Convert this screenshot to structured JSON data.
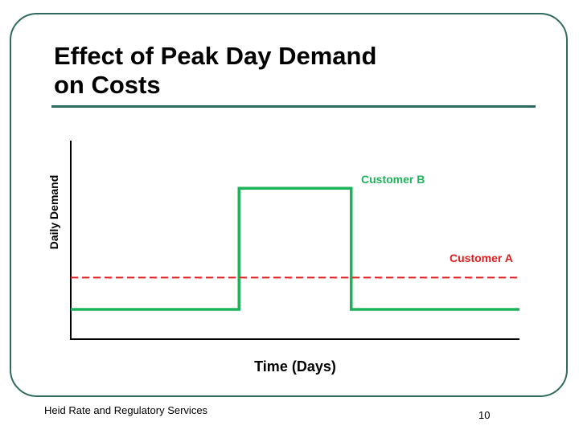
{
  "slide": {
    "title_line1": "Effect of Peak Day Demand",
    "title_line2": "on Costs",
    "footer": "Heid Rate and Regulatory Services",
    "page_number": "10"
  },
  "colors": {
    "frame": "#2e6b5e",
    "customer_b": "#1db35a",
    "customer_a": "#e01b1b",
    "axis": "#000000"
  },
  "chart_data": {
    "type": "line",
    "title": "",
    "xlabel": "Time (Days)",
    "ylabel": "Daily Demand",
    "xlim": [
      0,
      10
    ],
    "ylim": [
      0,
      10
    ],
    "grid": false,
    "ticks": false,
    "series": [
      {
        "name": "Customer B",
        "style": "solid",
        "x": [
          0,
          3.75,
          3.75,
          6.25,
          6.25,
          10
        ],
        "y": [
          1.5,
          1.5,
          7.6,
          7.6,
          1.5,
          1.5
        ]
      },
      {
        "name": "Customer A",
        "style": "dashed",
        "x": [
          0,
          10
        ],
        "y": [
          3.1,
          3.1
        ]
      }
    ]
  }
}
